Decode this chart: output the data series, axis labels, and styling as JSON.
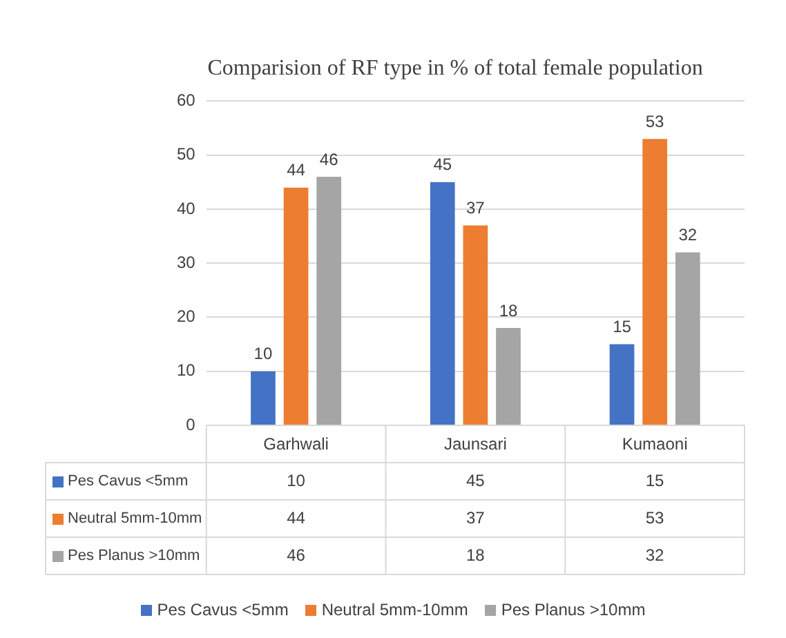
{
  "chart_data": {
    "type": "bar",
    "title": "Comparision of RF type in % of total female population",
    "categories": [
      "Garhwali",
      "Jaunsari",
      "Kumaoni"
    ],
    "series": [
      {
        "name": "Pes Cavus <5mm",
        "color": "#4472c4",
        "values": [
          10,
          45,
          15
        ],
        "value_labels": [
          "10",
          "45",
          "15"
        ]
      },
      {
        "name": "Neutral 5mm-10mm",
        "color": "#ed7d31",
        "values": [
          44,
          37,
          53
        ],
        "value_labels": [
          "44",
          "37",
          "53"
        ]
      },
      {
        "name": "Pes Planus >10mm",
        "color": "#a5a5a5",
        "values": [
          46,
          18,
          32
        ],
        "value_labels": [
          "46",
          "18",
          "32"
        ]
      }
    ],
    "ylim": [
      0,
      60
    ],
    "yticks": [
      0,
      10,
      20,
      30,
      40,
      50,
      60
    ],
    "grid": "y",
    "legend": "bottom",
    "annotations": [
      "10",
      "45",
      "15",
      "44",
      "37",
      "53",
      "46",
      "18",
      "32"
    ]
  }
}
